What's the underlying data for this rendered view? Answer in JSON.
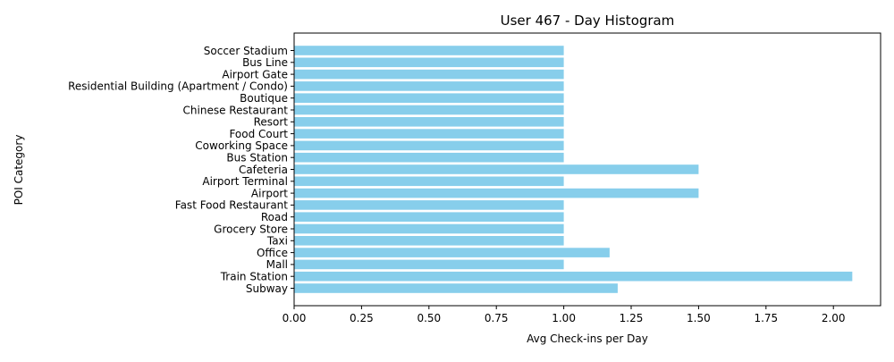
{
  "chart_data": {
    "type": "bar",
    "orientation": "horizontal",
    "title": "User 467 - Day Histogram",
    "xlabel": "Avg Check-ins per Day",
    "ylabel": "POI Category",
    "xlim": [
      0,
      2.175
    ],
    "xticks": [
      "0.00",
      "0.25",
      "0.50",
      "0.75",
      "1.00",
      "1.25",
      "1.50",
      "1.75",
      "2.00"
    ],
    "grid": false,
    "bar_color": "#87ceeb",
    "categories": [
      "Subway",
      "Train Station",
      "Mall",
      "Office",
      "Taxi",
      "Grocery Store",
      "Road",
      "Fast Food Restaurant",
      "Airport",
      "Airport Terminal",
      "Cafeteria",
      "Bus Station",
      "Coworking Space",
      "Food Court",
      "Resort",
      "Chinese Restaurant",
      "Boutique",
      "Residential Building (Apartment / Condo)",
      "Airport Gate",
      "Bus Line",
      "Soccer Stadium"
    ],
    "values": [
      1.2,
      2.07,
      1.0,
      1.17,
      1.0,
      1.0,
      1.0,
      1.0,
      1.5,
      1.0,
      1.5,
      1.0,
      1.0,
      1.0,
      1.0,
      1.0,
      1.0,
      1.0,
      1.0,
      1.0,
      1.0
    ]
  }
}
